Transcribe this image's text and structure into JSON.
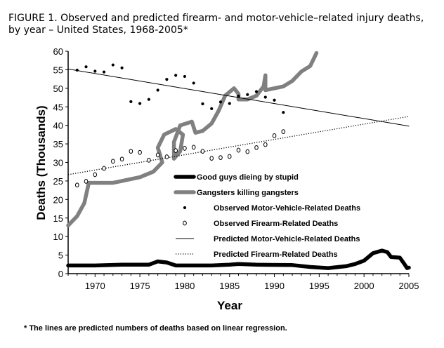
{
  "figure": {
    "title": "FIGURE 1. Observed and predicted firearm- and motor-vehicle–related injury deaths, by year – United States, 1968-2005*",
    "footnote": "* The lines are predicted numbers of deaths based on linear regression."
  },
  "chart_data": {
    "type": "scatter",
    "xlabel": "Year",
    "ylabel": "Deaths (Thousands)",
    "xlim": [
      1967,
      2005
    ],
    "ylim": [
      0,
      60
    ],
    "x_ticks": [
      1970,
      1975,
      1980,
      1985,
      1990,
      1995,
      2000,
      2005
    ],
    "y_ticks": [
      0,
      5,
      10,
      15,
      20,
      25,
      30,
      35,
      40,
      45,
      50,
      55,
      60
    ],
    "grid": false,
    "legend_position": "center-right",
    "series": [
      {
        "name": "Good guys dieing by stupid",
        "kind": "line",
        "color": "#000000",
        "style": "thick",
        "points": [
          [
            1967,
            2.2
          ],
          [
            1970,
            2.2
          ],
          [
            1973,
            2.4
          ],
          [
            1976,
            2.4
          ],
          [
            1977,
            3.3
          ],
          [
            1978,
            3.0
          ],
          [
            1979,
            2.2
          ],
          [
            1983,
            2.2
          ],
          [
            1985,
            2.4
          ],
          [
            1986,
            2.6
          ],
          [
            1988,
            2.4
          ],
          [
            1992,
            2.3
          ],
          [
            1994,
            1.8
          ],
          [
            1996,
            1.5
          ],
          [
            1998,
            2.0
          ],
          [
            1999,
            2.6
          ],
          [
            2000,
            3.5
          ],
          [
            2001,
            5.5
          ],
          [
            2002,
            6.2
          ],
          [
            2002.6,
            5.8
          ],
          [
            2003,
            4.5
          ],
          [
            2004,
            4.3
          ],
          [
            2004.5,
            2.6
          ],
          [
            2004.8,
            1.5
          ],
          [
            2005,
            1.6
          ]
        ]
      },
      {
        "name": "Gangsters killing gangsters",
        "kind": "line",
        "color": "#808080",
        "style": "thick",
        "points": [
          [
            1967,
            13
          ],
          [
            1968,
            15.5
          ],
          [
            1968.8,
            19
          ],
          [
            1969.3,
            24.5
          ],
          [
            1970,
            24.5
          ],
          [
            1972,
            24.5
          ],
          [
            1973,
            25
          ],
          [
            1975,
            26
          ],
          [
            1976.5,
            27.5
          ],
          [
            1977.5,
            30
          ],
          [
            1977,
            34
          ],
          [
            1977.7,
            37.5
          ],
          [
            1979,
            39
          ],
          [
            1979.8,
            37.5
          ],
          [
            1979.5,
            33
          ],
          [
            1978.8,
            31
          ],
          [
            1978.8,
            35.5
          ],
          [
            1979.5,
            40
          ],
          [
            1980.8,
            41
          ],
          [
            1981.2,
            38
          ],
          [
            1982,
            38.5
          ],
          [
            1983,
            40.5
          ],
          [
            1983.8,
            44
          ],
          [
            1984.5,
            48
          ],
          [
            1985.5,
            50
          ],
          [
            1986,
            48.5
          ],
          [
            1986,
            47
          ],
          [
            1987,
            47
          ],
          [
            1988,
            48
          ],
          [
            1988.8,
            50.5
          ],
          [
            1989,
            53.5
          ],
          [
            1989,
            49.5
          ],
          [
            1991,
            50.5
          ],
          [
            1992,
            52
          ],
          [
            1993,
            54.5
          ],
          [
            1994,
            56
          ],
          [
            1994.7,
            59.5
          ]
        ]
      },
      {
        "name": "Observed Motor-Vehicle-Related Deaths",
        "kind": "points",
        "marker": "filled-circle",
        "points": [
          [
            1968,
            54.9
          ],
          [
            1969,
            55.8
          ],
          [
            1970,
            54.6
          ],
          [
            1971,
            54.4
          ],
          [
            1972,
            56.3
          ],
          [
            1973,
            55.5
          ],
          [
            1974,
            46.4
          ],
          [
            1975,
            45.9
          ],
          [
            1976,
            47.0
          ],
          [
            1977,
            49.5
          ],
          [
            1978,
            52.4
          ],
          [
            1979,
            53.5
          ],
          [
            1980,
            53.2
          ],
          [
            1981,
            51.4
          ],
          [
            1982,
            45.8
          ],
          [
            1983,
            44.5
          ],
          [
            1984,
            46.3
          ],
          [
            1985,
            45.9
          ],
          [
            1986,
            47.9
          ],
          [
            1987,
            48.3
          ],
          [
            1988,
            49.1
          ],
          [
            1989,
            47.6
          ],
          [
            1990,
            46.8
          ],
          [
            1991,
            43.5
          ]
        ]
      },
      {
        "name": "Observed Firearm-Related Deaths",
        "kind": "points",
        "marker": "open-circle",
        "points": [
          [
            1968,
            23.9
          ],
          [
            1969,
            24.9
          ],
          [
            1970,
            26.7
          ],
          [
            1971,
            28.4
          ],
          [
            1972,
            30.3
          ],
          [
            1973,
            30.9
          ],
          [
            1974,
            33.0
          ],
          [
            1975,
            32.7
          ],
          [
            1976,
            30.6
          ],
          [
            1977,
            32.0
          ],
          [
            1978,
            31.5
          ],
          [
            1979,
            33.2
          ],
          [
            1980,
            33.8
          ],
          [
            1981,
            34.1
          ],
          [
            1982,
            33.0
          ],
          [
            1983,
            31.1
          ],
          [
            1984,
            31.3
          ],
          [
            1985,
            31.6
          ],
          [
            1986,
            33.3
          ],
          [
            1987,
            32.9
          ],
          [
            1988,
            34.0
          ],
          [
            1989,
            34.8
          ],
          [
            1990,
            37.2
          ],
          [
            1991,
            38.3
          ]
        ]
      },
      {
        "name": "Predicted Motor-Vehicle-Related Deaths",
        "kind": "line",
        "style": "solid",
        "color": "#000000",
        "points": [
          [
            1967,
            55.2
          ],
          [
            2005,
            39.8
          ]
        ]
      },
      {
        "name": "Predicted Firearm-Related Deaths",
        "kind": "line",
        "style": "dotted",
        "color": "#000000",
        "points": [
          [
            1967,
            26.7
          ],
          [
            2005,
            42.4
          ]
        ]
      }
    ]
  }
}
